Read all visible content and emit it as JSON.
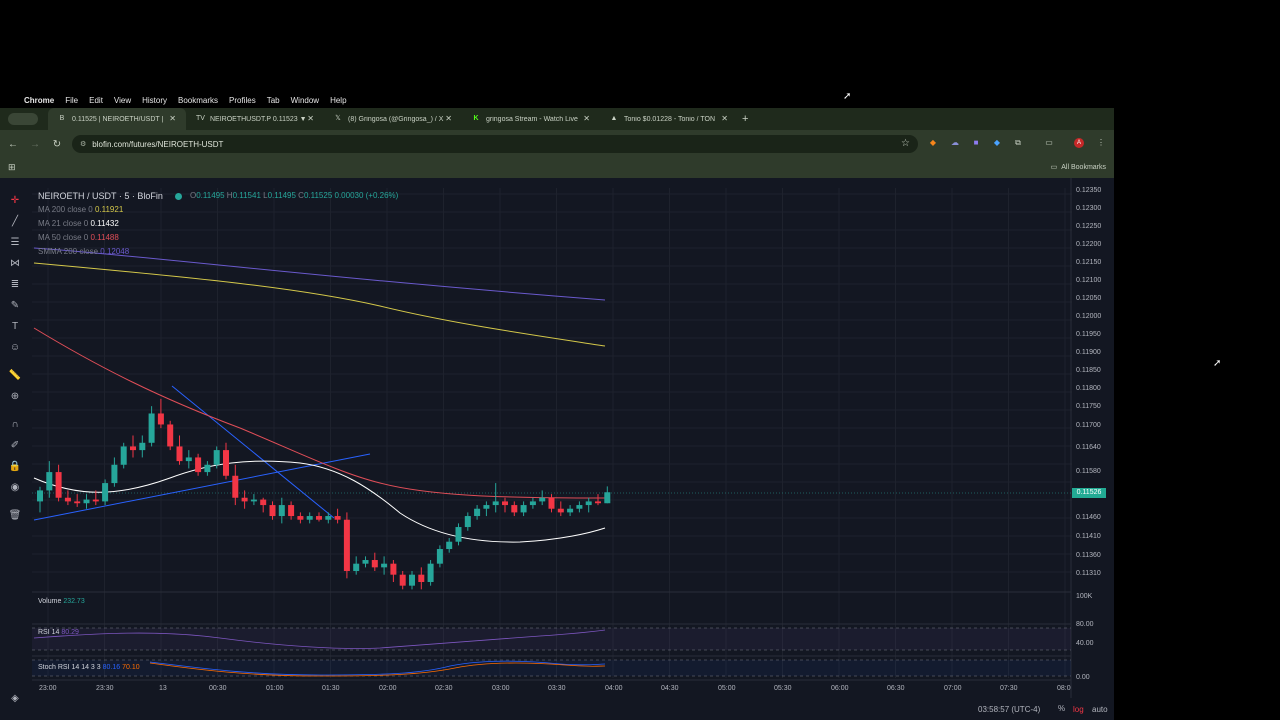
{
  "menubar": {
    "items": [
      "Chrome",
      "File",
      "Edit",
      "View",
      "History",
      "Bookmarks",
      "Profiles",
      "Tab",
      "Window",
      "Help"
    ]
  },
  "browser": {
    "tabs": [
      {
        "title": "0.11525 | NEIROETH/USDT | ",
        "icon": "blofin-icon",
        "active": true
      },
      {
        "title": "NEIROETHUSDT.P 0.11523 ▼",
        "icon": "tradingview-icon",
        "active": false
      },
      {
        "title": "(8) Gringosa (@Gringosa_) / X",
        "icon": "x-icon",
        "active": false
      },
      {
        "title": "gringosa Stream - Watch Live",
        "icon": "kick-icon",
        "active": false
      },
      {
        "title": "Tonio $0.01228 - Tonio / TON",
        "icon": "dex-icon",
        "active": false
      }
    ],
    "url": "blofin.com/futures/NEIROETH-USDT",
    "bookmarks_label": "All Bookmarks"
  },
  "chart": {
    "symbol_title": "NEIROETH / USDT · 5 · BloFin",
    "ohlc": {
      "o_label": "O",
      "o": "0.11495",
      "h_label": "H",
      "h": "0.11541",
      "l_label": "L",
      "l": "0.11495",
      "c_label": "C",
      "c": "0.11525",
      "change": "0.00030 (+0.26%)"
    },
    "indicators": [
      {
        "label": "MA 200 close 0",
        "value": "0.11921",
        "color": "#d4c84a"
      },
      {
        "label": "MA 21 close 0",
        "value": "0.11432",
        "color": "#ffffff"
      },
      {
        "label": "MA 50 close 0",
        "value": "0.11488",
        "color": "#e04e58"
      },
      {
        "label": "SMMA 200 close",
        "value": "0.12048",
        "color": "#6a5acd"
      }
    ],
    "volume_label": "Volume",
    "volume_value": "232.73",
    "rsi_label": "RSI 14",
    "rsi_value": "80.29",
    "stoch_label": "Stoch RSI 14 14 3 3",
    "stoch_k": "80.16",
    "stoch_d": "70.10",
    "last_price": "0.11526",
    "price_ticks": [
      "0.12350",
      "0.12300",
      "0.12250",
      "0.12200",
      "0.12150",
      "0.12100",
      "0.12050",
      "0.12000",
      "0.11950",
      "0.11900",
      "0.11850",
      "0.11800",
      "0.11750",
      "0.11700",
      "0.11640",
      "0.11580",
      "0.11460",
      "0.11410",
      "0.11360",
      "0.11310"
    ],
    "volume_tick": "100K",
    "rsi_ticks": [
      "80.00",
      "40.00"
    ],
    "stoch_tick": "0.00",
    "time_ticks": [
      "23:00",
      "23:30",
      "13",
      "00:30",
      "01:00",
      "01:30",
      "02:00",
      "02:30",
      "03:00",
      "03:30",
      "04:00",
      "04:30",
      "05:00",
      "05:30",
      "06:00",
      "06:30",
      "07:00",
      "07:30",
      "08:0"
    ],
    "clock": "03:58:57 (UTC-4)",
    "pct": "%",
    "log": "log",
    "auto": "auto"
  },
  "colors": {
    "up": "#26a69a",
    "down": "#f23645",
    "ma200": "#d4c84a",
    "ma21": "#ffffff",
    "ma50": "#e04e58",
    "smma200": "#6a5acd",
    "trendline": "#2962ff"
  },
  "candles": [
    {
      "t": "22:50",
      "o": 0.115,
      "h": 0.1154,
      "l": 0.1147,
      "c": 0.1153
    },
    {
      "t": "22:55",
      "o": 0.1153,
      "h": 0.1161,
      "l": 0.1151,
      "c": 0.1158
    },
    {
      "t": "23:00",
      "o": 0.1158,
      "h": 0.116,
      "l": 0.115,
      "c": 0.1151
    },
    {
      "t": "23:05",
      "o": 0.1151,
      "h": 0.1153,
      "l": 0.1149,
      "c": 0.115
    },
    {
      "t": "23:10",
      "o": 0.115,
      "h": 0.1152,
      "l": 0.11485,
      "c": 0.11495
    },
    {
      "t": "23:15",
      "o": 0.11495,
      "h": 0.1152,
      "l": 0.1148,
      "c": 0.11505
    },
    {
      "t": "23:20",
      "o": 0.11505,
      "h": 0.1153,
      "l": 0.1149,
      "c": 0.115
    },
    {
      "t": "23:25",
      "o": 0.115,
      "h": 0.1156,
      "l": 0.1149,
      "c": 0.1155
    },
    {
      "t": "23:30",
      "o": 0.1155,
      "h": 0.1162,
      "l": 0.1154,
      "c": 0.116
    },
    {
      "t": "23:35",
      "o": 0.116,
      "h": 0.1166,
      "l": 0.1159,
      "c": 0.1165
    },
    {
      "t": "23:40",
      "o": 0.1165,
      "h": 0.1168,
      "l": 0.1162,
      "c": 0.1164
    },
    {
      "t": "23:45",
      "o": 0.1164,
      "h": 0.1168,
      "l": 0.1162,
      "c": 0.1166
    },
    {
      "t": "23:50",
      "o": 0.1166,
      "h": 0.1176,
      "l": 0.1165,
      "c": 0.1174
    },
    {
      "t": "23:55",
      "o": 0.1174,
      "h": 0.1178,
      "l": 0.117,
      "c": 0.1171
    },
    {
      "t": "00:00",
      "o": 0.1171,
      "h": 0.1172,
      "l": 0.1164,
      "c": 0.1165
    },
    {
      "t": "00:05",
      "o": 0.1165,
      "h": 0.1168,
      "l": 0.116,
      "c": 0.1161
    },
    {
      "t": "00:10",
      "o": 0.1161,
      "h": 0.1164,
      "l": 0.1159,
      "c": 0.1162
    },
    {
      "t": "00:15",
      "o": 0.1162,
      "h": 0.1163,
      "l": 0.1157,
      "c": 0.1158
    },
    {
      "t": "00:20",
      "o": 0.1158,
      "h": 0.1161,
      "l": 0.1157,
      "c": 0.116
    },
    {
      "t": "00:25",
      "o": 0.116,
      "h": 0.1165,
      "l": 0.1159,
      "c": 0.1164
    },
    {
      "t": "00:30",
      "o": 0.1164,
      "h": 0.1166,
      "l": 0.1156,
      "c": 0.1157
    },
    {
      "t": "00:35",
      "o": 0.1157,
      "h": 0.116,
      "l": 0.1149,
      "c": 0.1151
    },
    {
      "t": "00:40",
      "o": 0.1151,
      "h": 0.1153,
      "l": 0.1148,
      "c": 0.115
    },
    {
      "t": "00:45",
      "o": 0.115,
      "h": 0.1152,
      "l": 0.1149,
      "c": 0.11505
    },
    {
      "t": "00:50",
      "o": 0.11505,
      "h": 0.1151,
      "l": 0.1147,
      "c": 0.1149
    },
    {
      "t": "00:55",
      "o": 0.1149,
      "h": 0.115,
      "l": 0.1145,
      "c": 0.1146
    },
    {
      "t": "01:00",
      "o": 0.1146,
      "h": 0.1151,
      "l": 0.1144,
      "c": 0.1149
    },
    {
      "t": "01:05",
      "o": 0.1149,
      "h": 0.115,
      "l": 0.1145,
      "c": 0.1146
    },
    {
      "t": "01:10",
      "o": 0.1146,
      "h": 0.1147,
      "l": 0.1144,
      "c": 0.1145
    },
    {
      "t": "01:15",
      "o": 0.1145,
      "h": 0.1147,
      "l": 0.1144,
      "c": 0.1146
    },
    {
      "t": "01:20",
      "o": 0.1146,
      "h": 0.1147,
      "l": 0.11445,
      "c": 0.1145
    },
    {
      "t": "01:25",
      "o": 0.1145,
      "h": 0.1147,
      "l": 0.1144,
      "c": 0.1146
    },
    {
      "t": "01:30",
      "o": 0.1146,
      "h": 0.1148,
      "l": 0.1144,
      "c": 0.1145
    },
    {
      "t": "01:35",
      "o": 0.1145,
      "h": 0.1147,
      "l": 0.1129,
      "c": 0.1131
    },
    {
      "t": "01:40",
      "o": 0.1131,
      "h": 0.1135,
      "l": 0.113,
      "c": 0.1133
    },
    {
      "t": "01:45",
      "o": 0.1133,
      "h": 0.1135,
      "l": 0.1132,
      "c": 0.1134
    },
    {
      "t": "01:50",
      "o": 0.1134,
      "h": 0.1136,
      "l": 0.1131,
      "c": 0.1132
    },
    {
      "t": "01:55",
      "o": 0.1132,
      "h": 0.1135,
      "l": 0.113,
      "c": 0.1133
    },
    {
      "t": "02:00",
      "o": 0.1133,
      "h": 0.1134,
      "l": 0.1128,
      "c": 0.113
    },
    {
      "t": "02:05",
      "o": 0.113,
      "h": 0.1131,
      "l": 0.1126,
      "c": 0.1127
    },
    {
      "t": "02:10",
      "o": 0.1127,
      "h": 0.1131,
      "l": 0.1126,
      "c": 0.113
    },
    {
      "t": "02:15",
      "o": 0.113,
      "h": 0.1132,
      "l": 0.1126,
      "c": 0.1128
    },
    {
      "t": "02:20",
      "o": 0.1128,
      "h": 0.1134,
      "l": 0.1127,
      "c": 0.1133
    },
    {
      "t": "02:25",
      "o": 0.1133,
      "h": 0.1138,
      "l": 0.1132,
      "c": 0.1137
    },
    {
      "t": "02:30",
      "o": 0.1137,
      "h": 0.114,
      "l": 0.1136,
      "c": 0.1139
    },
    {
      "t": "02:35",
      "o": 0.1139,
      "h": 0.1144,
      "l": 0.1138,
      "c": 0.1143
    },
    {
      "t": "02:40",
      "o": 0.1143,
      "h": 0.1147,
      "l": 0.1142,
      "c": 0.1146
    },
    {
      "t": "02:45",
      "o": 0.1146,
      "h": 0.1149,
      "l": 0.1145,
      "c": 0.1148
    },
    {
      "t": "02:50",
      "o": 0.1148,
      "h": 0.115,
      "l": 0.1146,
      "c": 0.1149
    },
    {
      "t": "02:55",
      "o": 0.1149,
      "h": 0.1155,
      "l": 0.1147,
      "c": 0.115
    },
    {
      "t": "03:00",
      "o": 0.115,
      "h": 0.1151,
      "l": 0.1147,
      "c": 0.1149
    },
    {
      "t": "03:05",
      "o": 0.1149,
      "h": 0.115,
      "l": 0.1146,
      "c": 0.1147
    },
    {
      "t": "03:10",
      "o": 0.1147,
      "h": 0.115,
      "l": 0.1146,
      "c": 0.1149
    },
    {
      "t": "03:15",
      "o": 0.1149,
      "h": 0.1151,
      "l": 0.1148,
      "c": 0.115
    },
    {
      "t": "03:20",
      "o": 0.115,
      "h": 0.1153,
      "l": 0.1149,
      "c": 0.1151
    },
    {
      "t": "03:25",
      "o": 0.1151,
      "h": 0.1152,
      "l": 0.1147,
      "c": 0.1148
    },
    {
      "t": "03:30",
      "o": 0.1148,
      "h": 0.115,
      "l": 0.1146,
      "c": 0.1147
    },
    {
      "t": "03:35",
      "o": 0.1147,
      "h": 0.1149,
      "l": 0.1146,
      "c": 0.1148
    },
    {
      "t": "03:40",
      "o": 0.1148,
      "h": 0.115,
      "l": 0.1147,
      "c": 0.1149
    },
    {
      "t": "03:45",
      "o": 0.1149,
      "h": 0.1151,
      "l": 0.1147,
      "c": 0.115
    },
    {
      "t": "03:50",
      "o": 0.115,
      "h": 0.1152,
      "l": 0.1149,
      "c": 0.11495
    },
    {
      "t": "03:55",
      "o": 0.11495,
      "h": 0.11541,
      "l": 0.11495,
      "c": 0.11525
    }
  ]
}
